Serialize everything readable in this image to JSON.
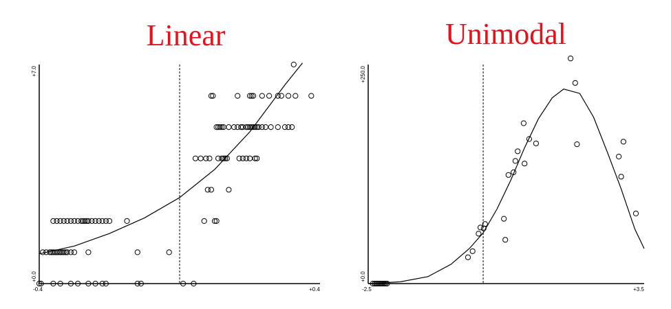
{
  "colors": {
    "title": "#e8101a",
    "axis": "#000000",
    "marker": "#000000"
  },
  "chart_data": [
    {
      "type": "scatter",
      "title": "Linear",
      "x_tick_labels": [
        "-0.4",
        "+0.4"
      ],
      "y_tick_labels": [
        "+0.0",
        "+7.0"
      ],
      "xlim": [
        -0.4,
        0.4
      ],
      "ylim": [
        0,
        7
      ],
      "reference_line_x": 0.0,
      "points": [
        [
          -0.4,
          0
        ],
        [
          -0.395,
          0
        ],
        [
          -0.36,
          0
        ],
        [
          -0.34,
          0
        ],
        [
          -0.31,
          0
        ],
        [
          -0.29,
          0
        ],
        [
          -0.26,
          0
        ],
        [
          -0.24,
          0
        ],
        [
          -0.22,
          0
        ],
        [
          -0.21,
          0
        ],
        [
          -0.12,
          0
        ],
        [
          -0.11,
          0
        ],
        [
          0.01,
          0
        ],
        [
          0.04,
          0
        ],
        [
          -0.39,
          1
        ],
        [
          -0.38,
          1
        ],
        [
          -0.37,
          1
        ],
        [
          -0.365,
          1
        ],
        [
          -0.36,
          1
        ],
        [
          -0.355,
          1
        ],
        [
          -0.35,
          1
        ],
        [
          -0.345,
          1
        ],
        [
          -0.34,
          1
        ],
        [
          -0.335,
          1
        ],
        [
          -0.33,
          1
        ],
        [
          -0.325,
          1
        ],
        [
          -0.32,
          1
        ],
        [
          -0.31,
          1
        ],
        [
          -0.3,
          1
        ],
        [
          -0.26,
          1
        ],
        [
          -0.12,
          1
        ],
        [
          -0.03,
          1
        ],
        [
          -0.36,
          2
        ],
        [
          -0.35,
          2
        ],
        [
          -0.34,
          2
        ],
        [
          -0.33,
          2
        ],
        [
          -0.32,
          2
        ],
        [
          -0.31,
          2
        ],
        [
          -0.3,
          2
        ],
        [
          -0.29,
          2
        ],
        [
          -0.28,
          2
        ],
        [
          -0.275,
          2
        ],
        [
          -0.27,
          2
        ],
        [
          -0.265,
          2
        ],
        [
          -0.26,
          2
        ],
        [
          -0.25,
          2
        ],
        [
          -0.24,
          2
        ],
        [
          -0.23,
          2
        ],
        [
          -0.22,
          2
        ],
        [
          -0.21,
          2
        ],
        [
          -0.2,
          2
        ],
        [
          -0.15,
          2
        ],
        [
          0.07,
          2
        ],
        [
          0.1,
          2
        ],
        [
          0.105,
          2
        ],
        [
          0.08,
          3
        ],
        [
          0.09,
          3
        ],
        [
          0.14,
          3
        ],
        [
          0.045,
          4
        ],
        [
          0.06,
          4
        ],
        [
          0.075,
          4
        ],
        [
          0.085,
          4
        ],
        [
          0.11,
          4
        ],
        [
          0.12,
          4
        ],
        [
          0.125,
          4
        ],
        [
          0.13,
          4
        ],
        [
          0.135,
          4
        ],
        [
          0.17,
          4
        ],
        [
          0.18,
          4
        ],
        [
          0.19,
          4
        ],
        [
          0.2,
          4
        ],
        [
          0.215,
          4
        ],
        [
          0.22,
          4
        ],
        [
          0.105,
          5
        ],
        [
          0.11,
          5
        ],
        [
          0.115,
          5
        ],
        [
          0.12,
          5
        ],
        [
          0.125,
          5
        ],
        [
          0.14,
          5
        ],
        [
          0.155,
          5
        ],
        [
          0.165,
          5
        ],
        [
          0.175,
          5
        ],
        [
          0.18,
          5
        ],
        [
          0.19,
          5
        ],
        [
          0.195,
          5
        ],
        [
          0.2,
          5
        ],
        [
          0.205,
          5
        ],
        [
          0.21,
          5
        ],
        [
          0.215,
          5
        ],
        [
          0.22,
          5
        ],
        [
          0.225,
          5
        ],
        [
          0.235,
          5
        ],
        [
          0.245,
          5
        ],
        [
          0.26,
          5
        ],
        [
          0.28,
          5
        ],
        [
          0.3,
          5
        ],
        [
          0.31,
          5
        ],
        [
          0.32,
          5
        ],
        [
          0.09,
          6
        ],
        [
          0.095,
          6
        ],
        [
          0.165,
          6
        ],
        [
          0.2,
          6
        ],
        [
          0.205,
          6
        ],
        [
          0.21,
          6
        ],
        [
          0.235,
          6
        ],
        [
          0.255,
          6
        ],
        [
          0.28,
          6
        ],
        [
          0.29,
          6
        ],
        [
          0.31,
          6
        ],
        [
          0.33,
          6
        ],
        [
          0.375,
          6
        ],
        [
          0.325,
          7
        ]
      ],
      "fit_curve": [
        [
          -0.4,
          0.95
        ],
        [
          -0.3,
          1.2
        ],
        [
          -0.2,
          1.6
        ],
        [
          -0.1,
          2.1
        ],
        [
          0.0,
          2.75
        ],
        [
          0.1,
          3.65
        ],
        [
          0.2,
          4.85
        ],
        [
          0.3,
          6.35
        ],
        [
          0.35,
          7.05
        ]
      ]
    },
    {
      "type": "scatter",
      "title": "Unimodal",
      "x_tick_labels": [
        "-2.5",
        "+3.5"
      ],
      "y_tick_labels": [
        "+0.0",
        "+250.0"
      ],
      "xlim": [
        -2.5,
        3.5
      ],
      "ylim": [
        0,
        250
      ],
      "reference_line_x": 0.0,
      "points": [
        [
          -2.4,
          0
        ],
        [
          -2.36,
          0
        ],
        [
          -2.33,
          0
        ],
        [
          -2.3,
          0
        ],
        [
          -2.27,
          0
        ],
        [
          -2.24,
          0
        ],
        [
          -2.21,
          0
        ],
        [
          -2.18,
          0
        ],
        [
          -2.15,
          0
        ],
        [
          -2.12,
          0
        ],
        [
          -2.09,
          0
        ],
        [
          -0.33,
          30
        ],
        [
          -0.23,
          37
        ],
        [
          -0.1,
          57
        ],
        [
          -0.06,
          64
        ],
        [
          0.01,
          63
        ],
        [
          0.04,
          68
        ],
        [
          0.45,
          74
        ],
        [
          0.48,
          50
        ],
        [
          0.55,
          124
        ],
        [
          0.66,
          127
        ],
        [
          0.7,
          140
        ],
        [
          0.75,
          151
        ],
        [
          0.88,
          183
        ],
        [
          0.9,
          137
        ],
        [
          1.0,
          165
        ],
        [
          1.15,
          160
        ],
        [
          1.9,
          257
        ],
        [
          2.0,
          229
        ],
        [
          2.04,
          159
        ],
        [
          2.95,
          145
        ],
        [
          3.0,
          122
        ],
        [
          3.05,
          162
        ],
        [
          3.32,
          80
        ]
      ],
      "fit_curve": [
        [
          -2.5,
          0
        ],
        [
          -1.8,
          2
        ],
        [
          -1.2,
          8
        ],
        [
          -0.7,
          22
        ],
        [
          -0.3,
          40
        ],
        [
          0.0,
          58
        ],
        [
          0.3,
          85
        ],
        [
          0.6,
          118
        ],
        [
          0.9,
          155
        ],
        [
          1.2,
          188
        ],
        [
          1.5,
          212
        ],
        [
          1.75,
          222
        ],
        [
          2.1,
          217
        ],
        [
          2.4,
          190
        ],
        [
          2.7,
          150
        ],
        [
          3.0,
          108
        ],
        [
          3.3,
          62
        ],
        [
          3.5,
          40
        ]
      ]
    }
  ]
}
